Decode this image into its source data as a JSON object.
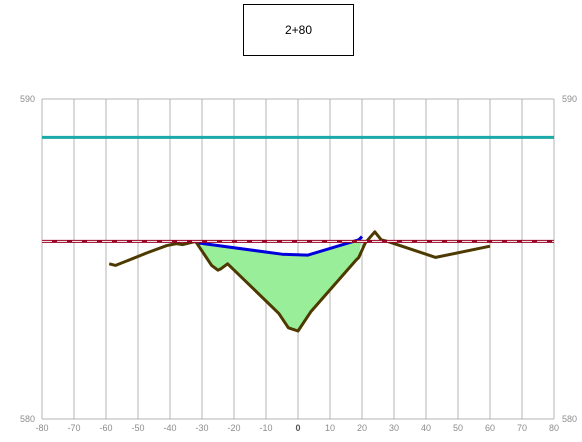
{
  "station": {
    "label": "2+80"
  },
  "chart_data": {
    "type": "line",
    "title": "2+80",
    "xlim": [
      -80,
      80
    ],
    "ylim": [
      580,
      590
    ],
    "x_ticks": [
      -80,
      -70,
      -60,
      -50,
      -40,
      -30,
      -20,
      -10,
      0,
      10,
      20,
      30,
      40,
      50,
      60,
      70,
      80
    ],
    "y_tick_labels": {
      "left": [
        "590",
        "580"
      ],
      "right": [
        "590",
        "580"
      ]
    },
    "grid": "vertical",
    "series": [
      {
        "key": "ground",
        "color": "#4d3a00",
        "x": [
          -59,
          -57,
          -47,
          -41,
          -38,
          -36,
          -32,
          -27,
          -25,
          -24,
          -22,
          -6,
          -3,
          0,
          4,
          18,
          19,
          21,
          24,
          26,
          28,
          43,
          60
        ],
        "y": [
          584.85,
          584.8,
          585.2,
          585.42,
          585.48,
          585.45,
          585.55,
          584.8,
          584.65,
          584.7,
          584.85,
          583.3,
          582.85,
          582.75,
          583.35,
          584.95,
          585.05,
          585.5,
          585.85,
          585.6,
          585.55,
          585.05,
          585.4
        ]
      },
      {
        "key": "section",
        "color": "#0000dd",
        "x": [
          -31,
          -5,
          3,
          19,
          20
        ],
        "y": [
          585.5,
          585.15,
          585.12,
          585.6,
          585.7
        ]
      },
      {
        "key": "upper_level",
        "color": "#1aa8a8",
        "x": [
          -80,
          80
        ],
        "y": [
          588.8,
          588.8
        ]
      },
      {
        "key": "reference_level",
        "color": "#990022",
        "dash": true,
        "x": [
          -80,
          80
        ],
        "y": [
          585.55,
          585.55
        ]
      }
    ],
    "fill": {
      "color": "#99ee99",
      "x": [
        -31,
        -5,
        3,
        19,
        20,
        19,
        18,
        4,
        0,
        -3,
        -6,
        -22,
        -24,
        -25,
        -27,
        -31
      ],
      "y": [
        585.5,
        585.15,
        585.12,
        585.6,
        585.7,
        585.05,
        584.95,
        583.35,
        582.75,
        582.85,
        583.3,
        584.85,
        584.7,
        584.65,
        584.8,
        585.5
      ]
    }
  }
}
